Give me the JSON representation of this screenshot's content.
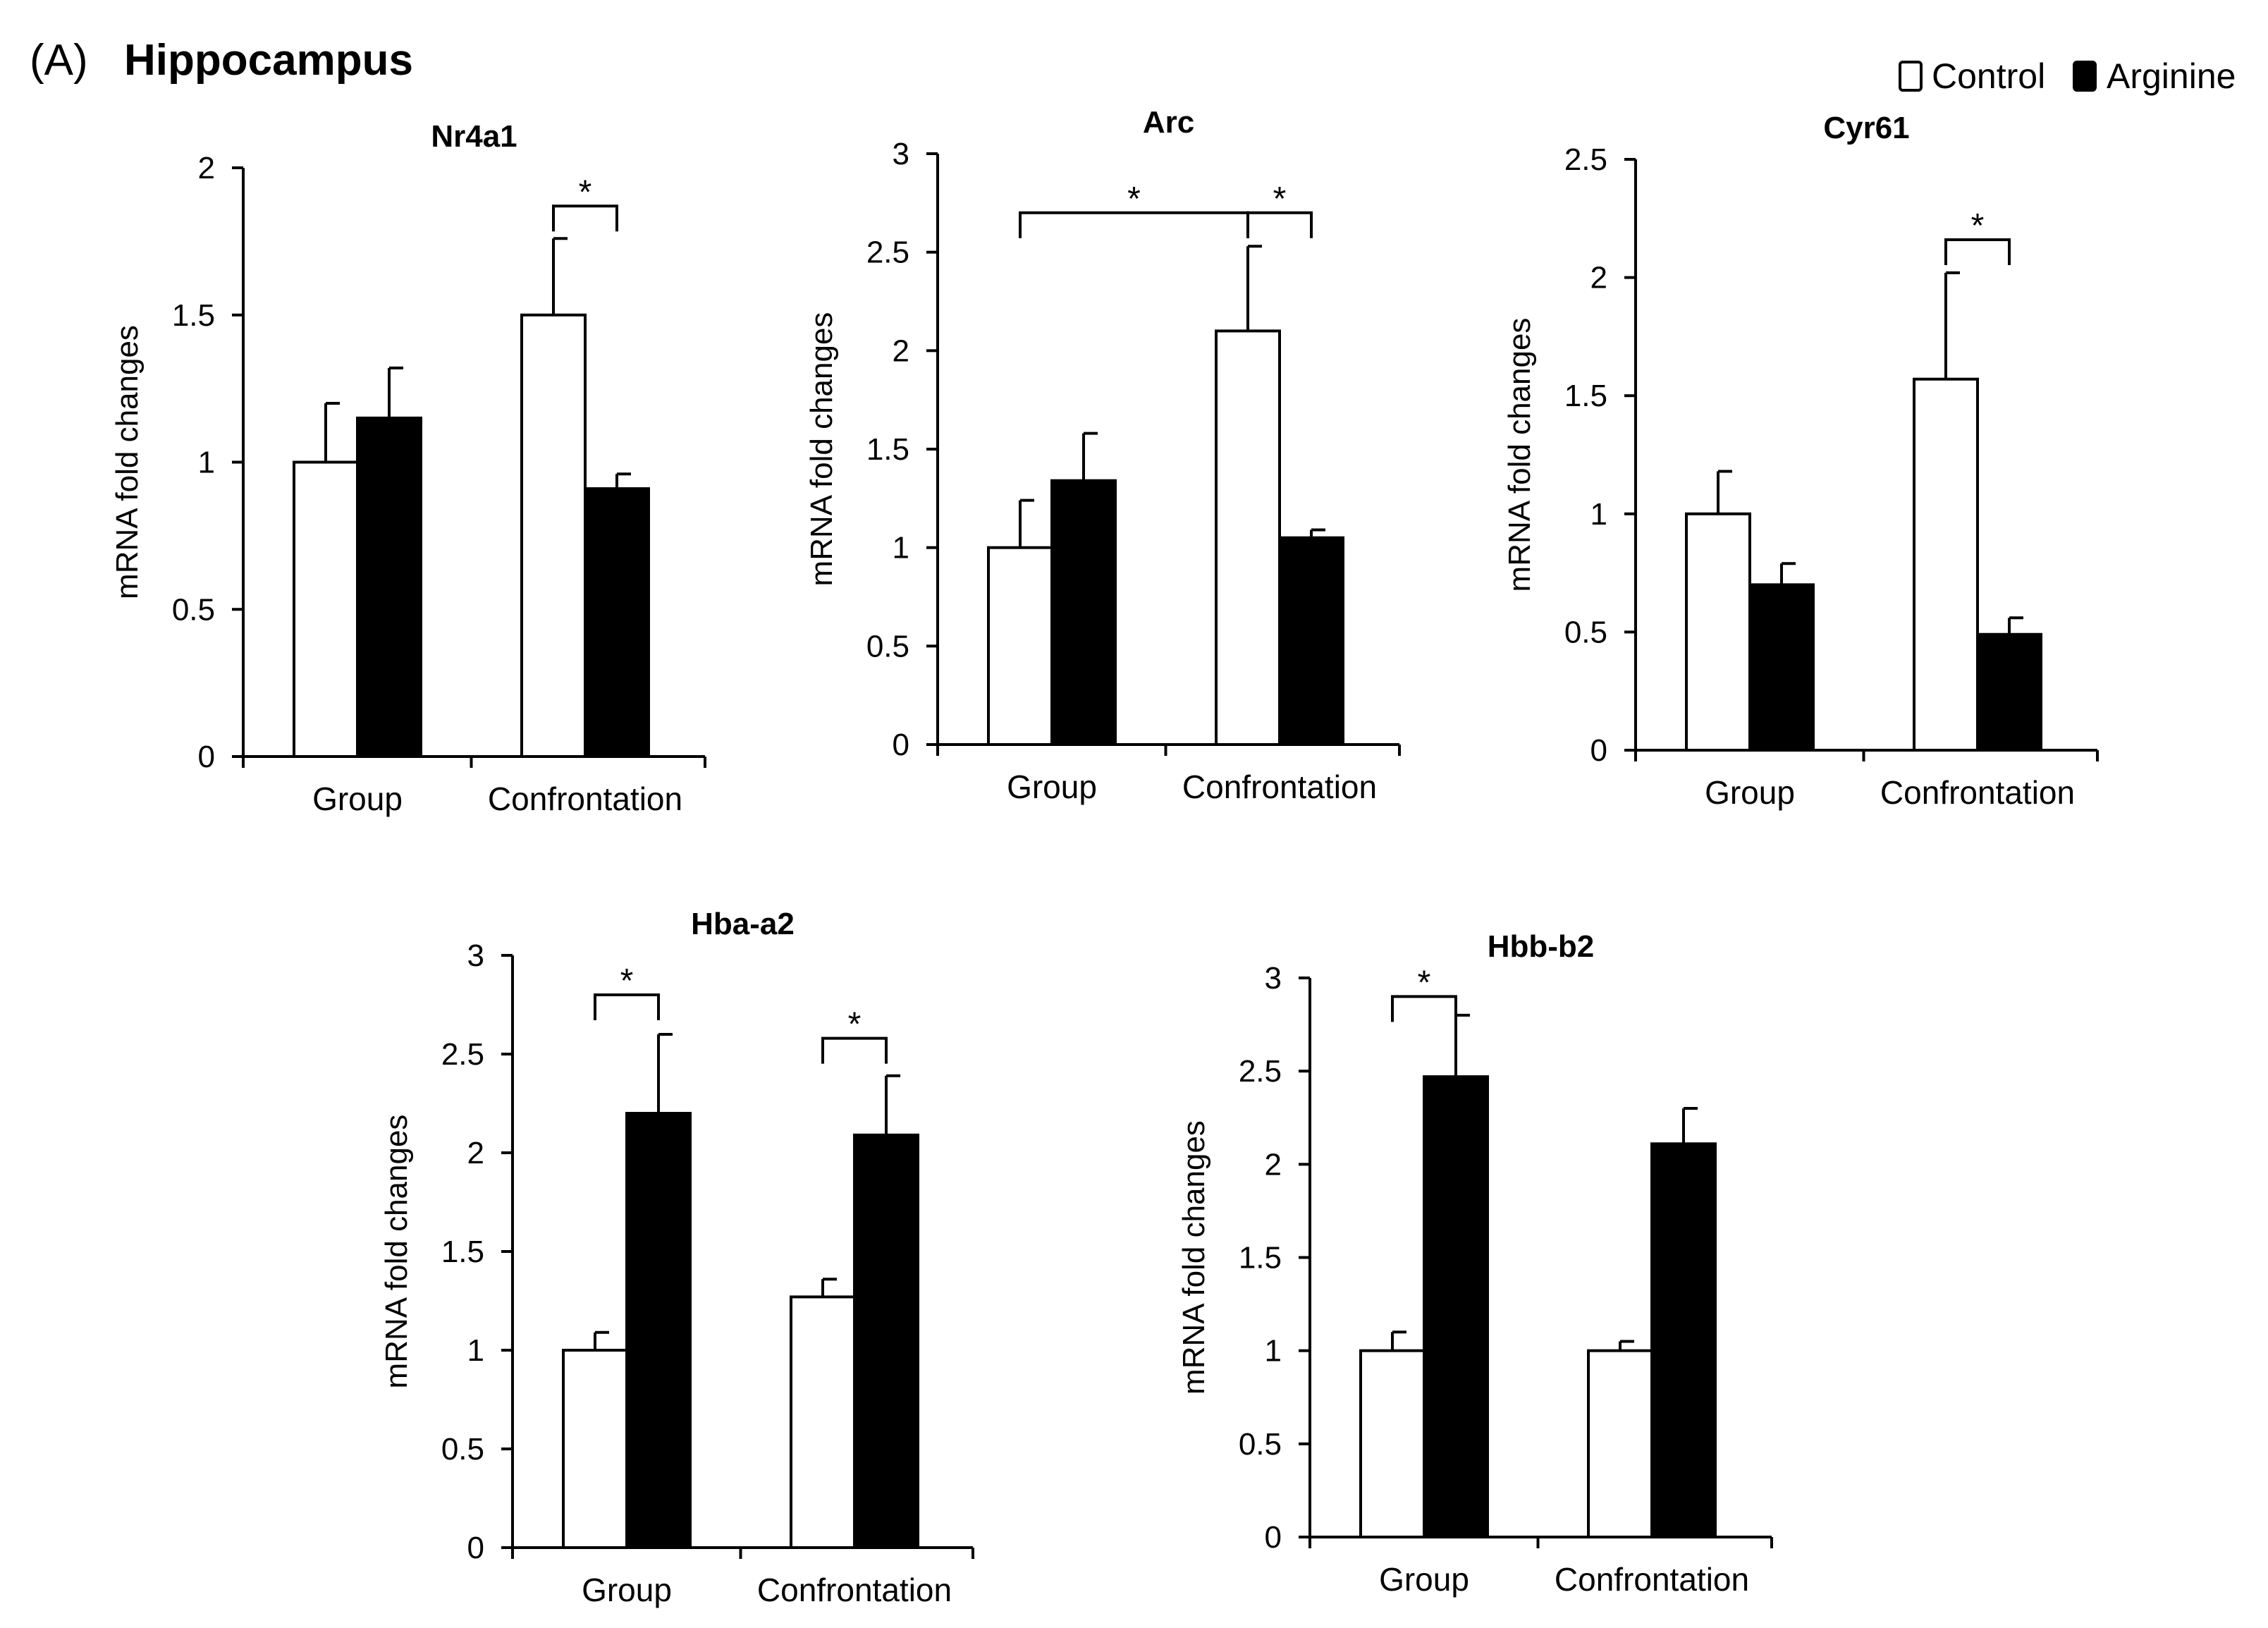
{
  "panel_label": "(A)",
  "section_title": "Hippocampus",
  "legend": {
    "control_label": "Control",
    "arginine_label": "Arginine",
    "control_color": "#ffffff",
    "arginine_color": "#000000"
  },
  "chart_data": [
    {
      "type": "bar",
      "title": "Nr4a1",
      "ylabel": "mRNA  fold changes",
      "xlabel": "",
      "categories": [
        "Group",
        "Confrontation"
      ],
      "ylim": [
        0,
        2
      ],
      "yticks": [
        "0",
        "0.5",
        "1",
        "1.5",
        "2"
      ],
      "series": [
        {
          "name": "Control",
          "values": [
            1.0,
            1.5
          ],
          "errors": [
            0.2,
            0.26
          ]
        },
        {
          "name": "Arginine",
          "values": [
            1.15,
            0.91
          ],
          "errors": [
            0.17,
            0.05
          ]
        }
      ],
      "significance": [
        {
          "from": [
            1,
            0
          ],
          "to": [
            1,
            1
          ],
          "label": "*",
          "level": 1.87
        }
      ]
    },
    {
      "type": "bar",
      "title": "Arc",
      "ylabel": "mRNA  fold changes",
      "xlabel": "",
      "categories": [
        "Group",
        "Confrontation"
      ],
      "ylim": [
        0,
        3
      ],
      "yticks": [
        "0",
        "0.5",
        "1",
        "1.5",
        "2",
        "2.5",
        "3"
      ],
      "series": [
        {
          "name": "Control",
          "values": [
            1.0,
            2.1
          ],
          "errors": [
            0.24,
            0.43
          ]
        },
        {
          "name": "Arginine",
          "values": [
            1.34,
            1.05
          ],
          "errors": [
            0.24,
            0.04
          ]
        }
      ],
      "significance": [
        {
          "from": [
            0,
            0
          ],
          "to": [
            1,
            0
          ],
          "label": "*",
          "level": 2.7
        },
        {
          "from": [
            1,
            0
          ],
          "to": [
            1,
            1
          ],
          "label": "*",
          "level": 2.7
        }
      ]
    },
    {
      "type": "bar",
      "title": "Cyr61",
      "ylabel": "mRNA  fold changes",
      "xlabel": "",
      "categories": [
        "Group",
        "Confrontation"
      ],
      "ylim": [
        0,
        2.5
      ],
      "yticks": [
        "0",
        "0.5",
        "1",
        "1.5",
        "2",
        "2.5"
      ],
      "series": [
        {
          "name": "Control",
          "values": [
            1.0,
            1.57
          ],
          "errors": [
            0.18,
            0.45
          ]
        },
        {
          "name": "Arginine",
          "values": [
            0.7,
            0.49
          ],
          "errors": [
            0.09,
            0.07
          ]
        }
      ],
      "significance": [
        {
          "from": [
            1,
            0
          ],
          "to": [
            1,
            1
          ],
          "label": "*",
          "level": 2.16
        }
      ]
    },
    {
      "type": "bar",
      "title": "Hba-a2",
      "ylabel": "mRNA  fold changes",
      "xlabel": "",
      "categories": [
        "Group",
        "Confrontation"
      ],
      "ylim": [
        0,
        3
      ],
      "yticks": [
        "0",
        "0.5",
        "1",
        "1.5",
        "2",
        "2.5",
        "3"
      ],
      "series": [
        {
          "name": "Control",
          "values": [
            1.0,
            1.27
          ],
          "errors": [
            0.09,
            0.09
          ]
        },
        {
          "name": "Arginine",
          "values": [
            2.2,
            2.09
          ],
          "errors": [
            0.4,
            0.3
          ]
        }
      ],
      "significance": [
        {
          "from": [
            0,
            0
          ],
          "to": [
            0,
            1
          ],
          "label": "*",
          "level": 2.8
        },
        {
          "from": [
            1,
            0
          ],
          "to": [
            1,
            1
          ],
          "label": "*",
          "level": 2.58
        }
      ]
    },
    {
      "type": "bar",
      "title": "Hbb-b2",
      "ylabel": "mRNA  fold changes",
      "xlabel": "",
      "categories": [
        "Group",
        "Confrontation"
      ],
      "ylim": [
        0,
        3
      ],
      "yticks": [
        "0",
        "0.5",
        "1",
        "1.5",
        "2",
        "2.5",
        "3"
      ],
      "series": [
        {
          "name": "Control",
          "values": [
            1.0,
            1.0
          ],
          "errors": [
            0.1,
            0.05
          ]
        },
        {
          "name": "Arginine",
          "values": [
            2.47,
            2.11
          ],
          "errors": [
            0.33,
            0.19
          ]
        }
      ],
      "significance": [
        {
          "from": [
            0,
            0
          ],
          "to": [
            0,
            1
          ],
          "label": "*",
          "level": 2.9
        }
      ]
    }
  ]
}
